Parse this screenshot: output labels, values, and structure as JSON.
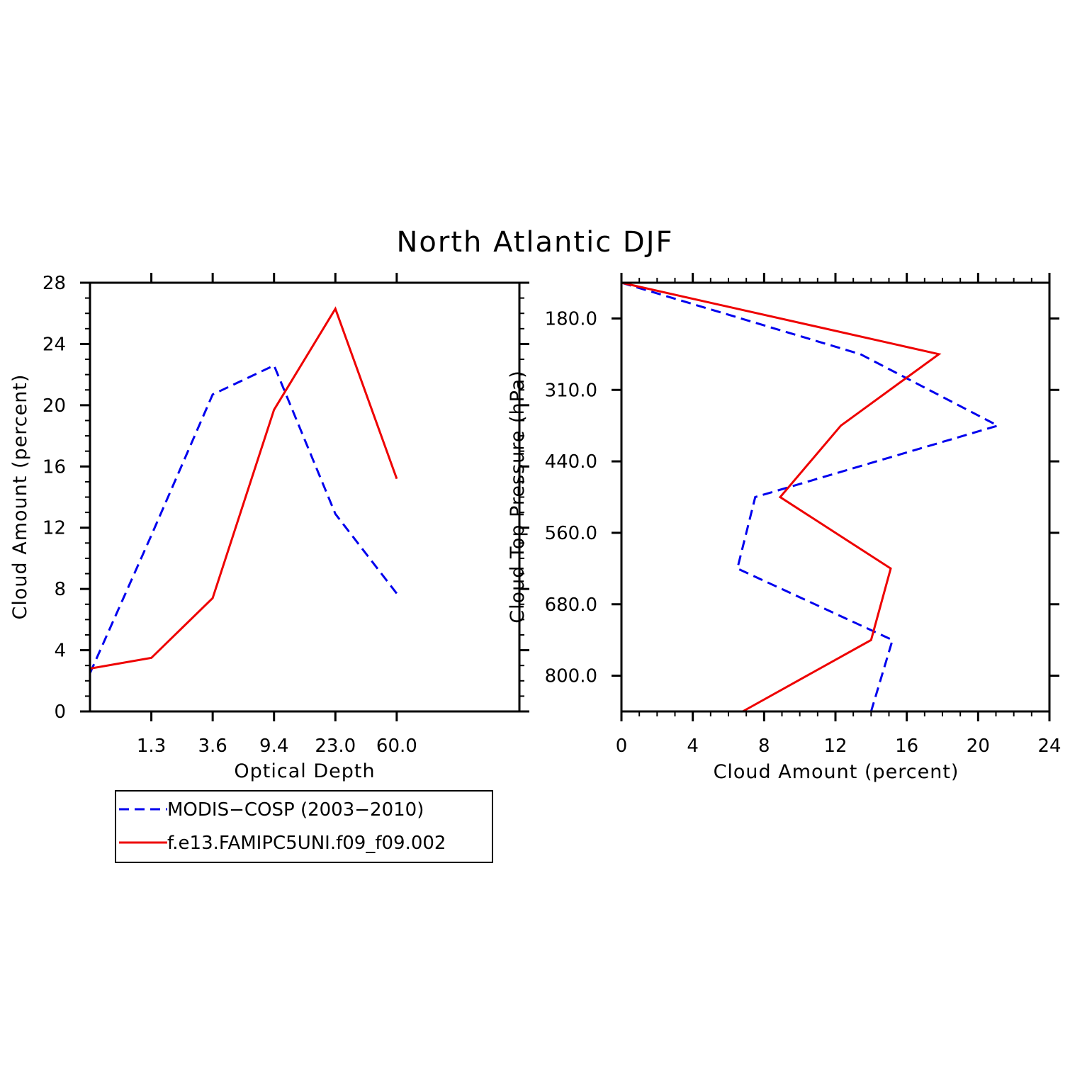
{
  "title": "North Atlantic DJF",
  "legend": {
    "entries": [
      {
        "label": "MODIS−COSP (2003−2010)",
        "color": "#0000ee",
        "dash": "dashed"
      },
      {
        "label": "f.e13.FAMIPC5UNI.f09_f09.002",
        "color": "#ee0000",
        "dash": "solid"
      }
    ]
  },
  "chart_data": [
    {
      "type": "line",
      "xlabel": "Optical Depth",
      "ylabel": "Cloud Amount (percent)",
      "x_tick_labels": [
        "1.3",
        "3.6",
        "9.4",
        "23.0",
        "60.0"
      ],
      "x_bins": 7,
      "y_ticks": [
        0,
        4,
        8,
        12,
        16,
        20,
        24,
        28
      ],
      "ylim": [
        0,
        28
      ],
      "series": [
        {
          "name": "MODIS−COSP (2003−2010)",
          "color": "#0000ee",
          "dash": "dashed",
          "values": [
            2.5,
            11.5,
            20.7,
            22.6,
            12.9,
            7.7
          ]
        },
        {
          "name": "f.e13.FAMIPC5UNI.f09_f09.002",
          "color": "#ee0000",
          "dash": "solid",
          "values": [
            2.8,
            3.5,
            7.4,
            19.7,
            26.3,
            15.2
          ]
        }
      ]
    },
    {
      "type": "line",
      "xlabel": "Cloud Amount (percent)",
      "ylabel": "Cloud Top Pressure (hPa)",
      "x_ticks": [
        0,
        4,
        8,
        12,
        16,
        20,
        24
      ],
      "xlim": [
        0,
        24
      ],
      "y_tick_labels": [
        "180.0",
        "310.0",
        "440.0",
        "560.0",
        "680.0",
        "800.0"
      ],
      "y_bins": 6,
      "series": [
        {
          "name": "MODIS−COSP (2003−2010)",
          "color": "#0000ee",
          "dash": "dashed",
          "values": [
            0.0,
            13.4,
            21.1,
            7.5,
            6.5,
            15.2,
            14.0
          ]
        },
        {
          "name": "f.e13.FAMIPC5UNI.f09_f09.002",
          "color": "#ee0000",
          "dash": "solid",
          "values": [
            0.0,
            17.8,
            12.3,
            8.9,
            15.1,
            14.0,
            6.8
          ]
        }
      ]
    }
  ]
}
